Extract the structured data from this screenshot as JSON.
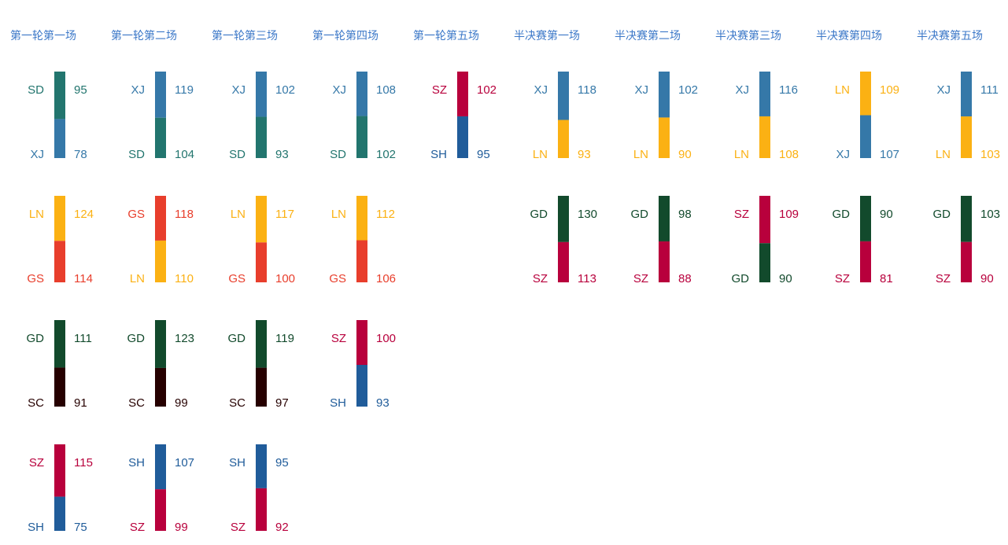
{
  "chart_data": {
    "type": "stacked-bar-matrix",
    "round_titles": [
      "第一轮第一场",
      "第一轮第二场",
      "第一轮第三场",
      "第一轮第四场",
      "第一轮第五场",
      "半决赛第一场",
      "半决赛第二场",
      "半决赛第三场",
      "半决赛第四场",
      "半决赛第五场"
    ],
    "team_colors": {
      "SD": "#22756e",
      "XJ": "#3578a8",
      "SZ": "#b8003c",
      "SH": "#205c9a",
      "LN": "#fbb113",
      "GS": "#e83e2c",
      "GD": "#124a2c",
      "SC": "#260000"
    },
    "series_groups": [
      [
        {
          "top": {
            "team": "SD",
            "score": 95
          },
          "bottom": {
            "team": "XJ",
            "score": 78
          }
        },
        {
          "top": {
            "team": "XJ",
            "score": 119
          },
          "bottom": {
            "team": "SD",
            "score": 104
          }
        },
        {
          "top": {
            "team": "XJ",
            "score": 102
          },
          "bottom": {
            "team": "SD",
            "score": 93
          }
        },
        {
          "top": {
            "team": "XJ",
            "score": 108
          },
          "bottom": {
            "team": "SD",
            "score": 102
          }
        },
        null,
        {
          "top": {
            "team": "XJ",
            "score": 118
          },
          "bottom": {
            "team": "LN",
            "score": 93
          }
        },
        {
          "top": {
            "team": "XJ",
            "score": 102
          },
          "bottom": {
            "team": "LN",
            "score": 90
          }
        },
        {
          "top": {
            "team": "XJ",
            "score": 116
          },
          "bottom": {
            "team": "LN",
            "score": 108
          }
        },
        {
          "top": {
            "team": "LN",
            "score": 109
          },
          "bottom": {
            "team": "XJ",
            "score": 107
          }
        },
        {
          "top": {
            "team": "XJ",
            "score": 111
          },
          "bottom": {
            "team": "LN",
            "score": 103
          }
        }
      ],
      [
        {
          "top": {
            "team": "LN",
            "score": 124
          },
          "bottom": {
            "team": "GS",
            "score": 114
          }
        },
        {
          "top": {
            "team": "GS",
            "score": 118
          },
          "bottom": {
            "team": "LN",
            "score": 110
          }
        },
        {
          "top": {
            "team": "LN",
            "score": 117
          },
          "bottom": {
            "team": "GS",
            "score": 100
          }
        },
        {
          "top": {
            "team": "LN",
            "score": 112
          },
          "bottom": {
            "team": "GS",
            "score": 106
          }
        },
        null,
        {
          "top": {
            "team": "GD",
            "score": 130
          },
          "bottom": {
            "team": "SZ",
            "score": 113
          }
        },
        {
          "top": {
            "team": "GD",
            "score": 98
          },
          "bottom": {
            "team": "SZ",
            "score": 88
          }
        },
        {
          "top": {
            "team": "SZ",
            "score": 109
          },
          "bottom": {
            "team": "GD",
            "score": 90
          }
        },
        {
          "top": {
            "team": "GD",
            "score": 90
          },
          "bottom": {
            "team": "SZ",
            "score": 81
          }
        },
        {
          "top": {
            "team": "GD",
            "score": 103
          },
          "bottom": {
            "team": "SZ",
            "score": 90
          }
        }
      ],
      [
        {
          "top": {
            "team": "GD",
            "score": 111
          },
          "bottom": {
            "team": "SC",
            "score": 91
          }
        },
        {
          "top": {
            "team": "GD",
            "score": 123
          },
          "bottom": {
            "team": "SC",
            "score": 99
          }
        },
        {
          "top": {
            "team": "GD",
            "score": 119
          },
          "bottom": {
            "team": "SC",
            "score": 97
          }
        },
        {
          "top": {
            "team": "SZ",
            "score": 100
          },
          "bottom": {
            "team": "SH",
            "score": 93
          }
        },
        null,
        null,
        null,
        null,
        null,
        null
      ],
      [
        {
          "top": {
            "team": "SZ",
            "score": 115
          },
          "bottom": {
            "team": "SH",
            "score": 75
          }
        },
        {
          "top": {
            "team": "SH",
            "score": 107
          },
          "bottom": {
            "team": "SZ",
            "score": 99
          }
        },
        {
          "top": {
            "team": "SH",
            "score": 95
          },
          "bottom": {
            "team": "SZ",
            "score": 92
          }
        },
        null,
        null,
        null,
        null,
        null,
        null,
        null
      ],
      [
        null,
        null,
        null,
        null,
        {
          "top": {
            "team": "SZ",
            "score": 102
          },
          "bottom": {
            "team": "SH",
            "score": 95
          }
        },
        null,
        null,
        null,
        null,
        null
      ]
    ]
  }
}
